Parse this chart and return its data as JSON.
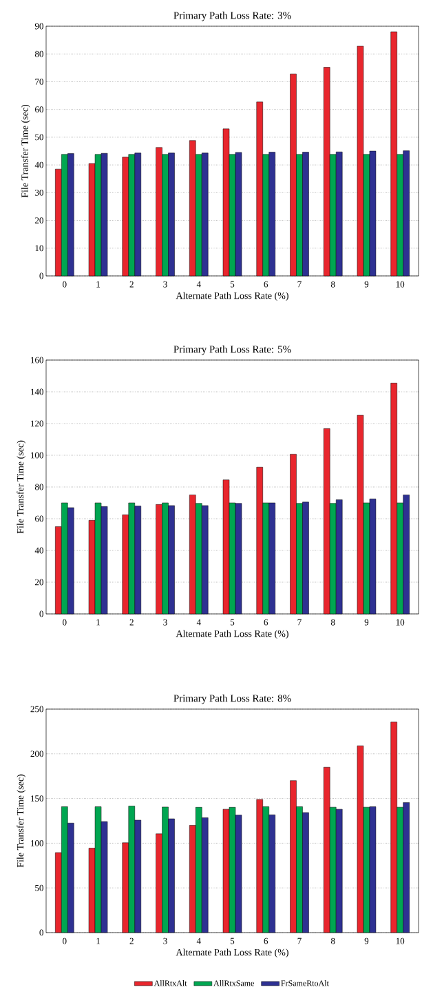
{
  "chart_data": [
    {
      "type": "bar",
      "title": "Primary Path Loss Rate: 3%",
      "xlabel": "Alternate Path Loss Rate (%)",
      "ylabel": "File Transfer Time (sec)",
      "categories": [
        "0",
        "1",
        "2",
        "3",
        "4",
        "5",
        "6",
        "7",
        "8",
        "9",
        "10"
      ],
      "series": [
        {
          "color": "#e8262d",
          "values": [
            38.5,
            40.5,
            42.8,
            46.3,
            48.8,
            53,
            62.7,
            72.8,
            75.2,
            82.8,
            88
          ]
        },
        {
          "color": "#00a651",
          "values": [
            43.8,
            43.8,
            43.8,
            43.8,
            43.8,
            43.8,
            43.8,
            43.8,
            43.8,
            43.8,
            43.8
          ]
        },
        {
          "color": "#2e3192",
          "values": [
            44.1,
            44.2,
            44.3,
            44.3,
            44.3,
            44.5,
            44.6,
            44.6,
            44.7,
            45,
            45.1
          ]
        }
      ],
      "ylim": [
        0,
        90
      ],
      "yticks": [
        0,
        10,
        20,
        30,
        40,
        50,
        60,
        70,
        80,
        90
      ],
      "grid": "y"
    },
    {
      "type": "bar",
      "title": "Primary Path Loss Rate: 5%",
      "xlabel": "Alternate Path Loss Rate (%)",
      "ylabel": "File Transfer Time (sec)",
      "categories": [
        "0",
        "1",
        "2",
        "3",
        "4",
        "5",
        "6",
        "7",
        "8",
        "9",
        "10"
      ],
      "series": [
        {
          "color": "#e8262d",
          "values": [
            55,
            59,
            62.5,
            69,
            75,
            84.5,
            92.5,
            100.7,
            116.8,
            125.2,
            145.5
          ]
        },
        {
          "color": "#00a651",
          "values": [
            70,
            70,
            70,
            70,
            69.7,
            70,
            70,
            69.7,
            69.7,
            70,
            70
          ]
        },
        {
          "color": "#2e3192",
          "values": [
            67,
            67.7,
            68,
            68.3,
            68.3,
            69.7,
            70,
            70.5,
            72,
            72.5,
            75
          ]
        }
      ],
      "ylim": [
        0,
        160
      ],
      "yticks": [
        0,
        20,
        40,
        60,
        80,
        100,
        120,
        140,
        160
      ],
      "grid": "y"
    },
    {
      "type": "bar",
      "title": "Primary Path Loss Rate: 8%",
      "xlabel": "Alternate Path Loss Rate (%)",
      "ylabel": "File Transfer Time (sec)",
      "categories": [
        "0",
        "1",
        "2",
        "3",
        "4",
        "5",
        "6",
        "7",
        "8",
        "9",
        "10"
      ],
      "series": [
        {
          "name": "AllRtxAlt",
          "color": "#e8262d",
          "values": [
            89.5,
            94.5,
            100.5,
            110.5,
            120,
            138,
            149,
            170,
            185,
            209,
            235.5
          ]
        },
        {
          "name": "AllRtxSame",
          "color": "#00a651",
          "values": [
            140.8,
            140.8,
            141.5,
            140.5,
            140.2,
            140.2,
            140.8,
            140.8,
            140.3,
            140.3,
            140.3
          ]
        },
        {
          "name": "FrSameRtoAlt",
          "color": "#2e3192",
          "values": [
            122.5,
            124.2,
            125.8,
            127.3,
            128.5,
            131.5,
            131.8,
            134.3,
            138,
            140.8,
            145.5
          ]
        }
      ],
      "ylim": [
        0,
        250
      ],
      "yticks": [
        0,
        50,
        100,
        150,
        200,
        250
      ],
      "grid": "y",
      "legend": "bottom"
    }
  ]
}
